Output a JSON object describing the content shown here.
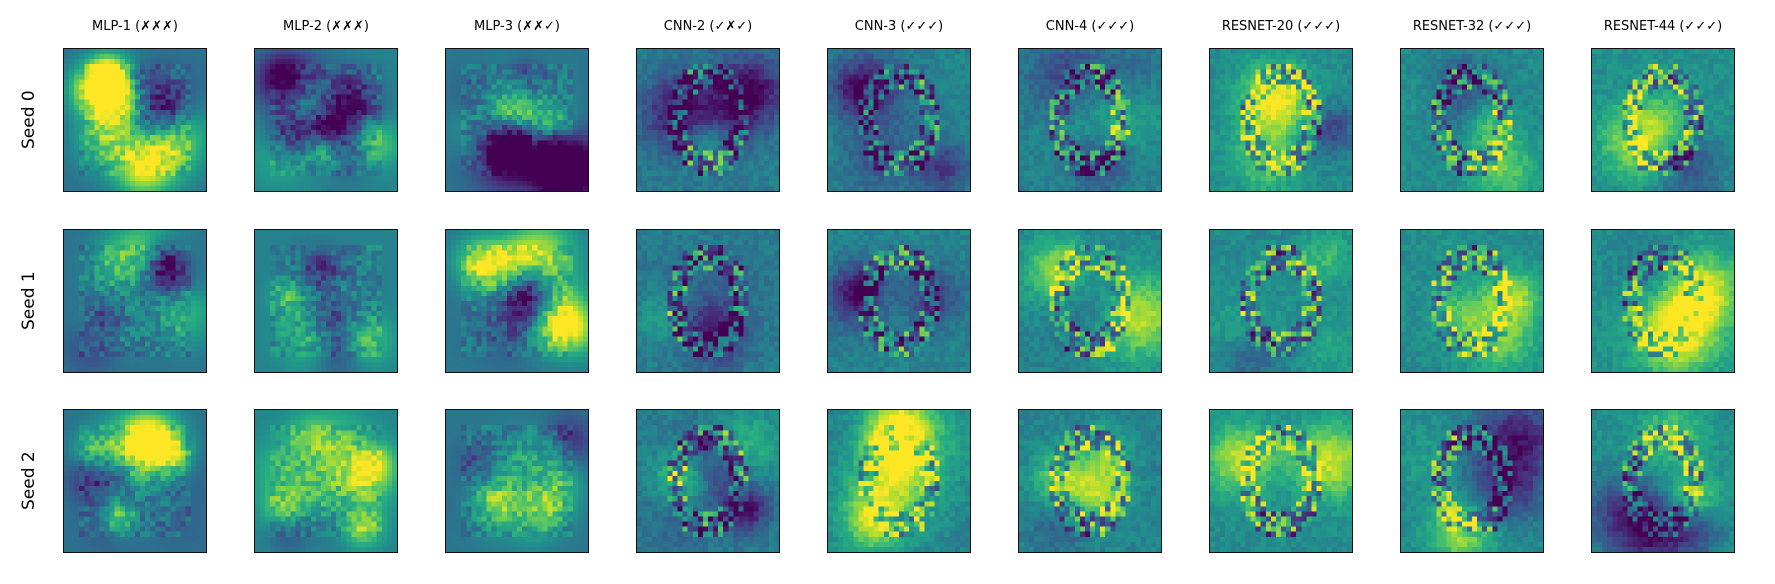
{
  "columns": [
    {
      "title": "MLP-1 (✗✗✗)",
      "style": "mlp",
      "bg": 0.38
    },
    {
      "title": "MLP-2 (✗✗✗)",
      "style": "mlp",
      "bg": 0.45
    },
    {
      "title": "MLP-3 (✗✗✓)",
      "style": "mlp",
      "bg": 0.4
    },
    {
      "title": "CNN-2 (✓✗✓)",
      "style": "cnn",
      "bg": 0.42
    },
    {
      "title": "CNN-3 (✓✓✓)",
      "style": "cnn",
      "bg": 0.45
    },
    {
      "title": "CNN-4 (✓✓✓)",
      "style": "cnn",
      "bg": 0.45
    },
    {
      "title": "RESNET-20 (✓✓✓)",
      "style": "resnet",
      "bg": 0.48
    },
    {
      "title": "RESNET-32 (✓✓✓)",
      "style": "resnet",
      "bg": 0.48
    },
    {
      "title": "RESNET-44 (✓✓✓)",
      "style": "resnet",
      "bg": 0.5
    }
  ],
  "rows": [
    {
      "label": "Seed 0"
    },
    {
      "label": "Seed 1"
    },
    {
      "label": "Seed 2"
    }
  ],
  "colormap": "viridis",
  "image_resolution": 28
}
